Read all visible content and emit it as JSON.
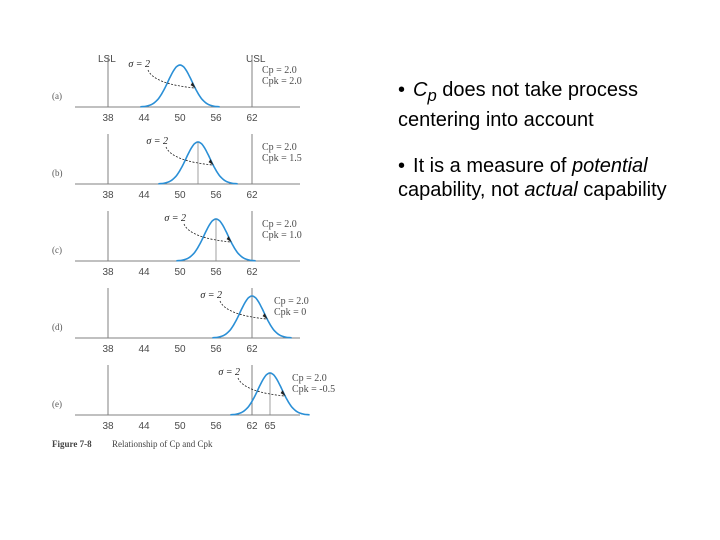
{
  "chart_data": {
    "type": "line",
    "description_labels": {
      "lsl": "LSL",
      "usl": "USL"
    },
    "spec_limits": {
      "lsl": 38,
      "usl": 62
    },
    "x_ticks": [
      "38",
      "44",
      "50",
      "56",
      "62"
    ],
    "sigma": 2,
    "sigma_label": "σ = 2",
    "panels": [
      {
        "label": "(a)",
        "mean": 50,
        "cp": "Cp = 2.0",
        "cpk": "Cpk = 2.0",
        "ticks": [
          "38",
          "44",
          "50",
          "56",
          "62"
        ]
      },
      {
        "label": "(b)",
        "mean": 53,
        "cp": "Cp = 2.0",
        "cpk": "Cpk = 1.5",
        "ticks": [
          "38",
          "44",
          "50",
          "56",
          "62"
        ]
      },
      {
        "label": "(c)",
        "mean": 56,
        "cp": "Cp = 2.0",
        "cpk": "Cpk = 1.0",
        "ticks": [
          "38",
          "44",
          "50",
          "56",
          "62"
        ]
      },
      {
        "label": "(d)",
        "mean": 62,
        "cp": "Cp = 2.0",
        "cpk": "Cpk = 0",
        "ticks": [
          "38",
          "44",
          "50",
          "56",
          "62"
        ]
      },
      {
        "label": "(e)",
        "mean": 65,
        "cp": "Cp = 2.0",
        "cpk": "Cpk = -0.5",
        "ticks": [
          "38",
          "44",
          "50",
          "56",
          "62",
          "65"
        ]
      }
    ],
    "caption_fig": "Figure 7-8",
    "caption_text": "Relationship of Cp and Cpk"
  },
  "bullets": [
    {
      "parts": [
        {
          "text": "C",
          "italic": true
        },
        {
          "text": "p",
          "italic": true,
          "sub": true
        },
        {
          "text": " does not take process centering into account",
          "italic": false
        }
      ]
    },
    {
      "parts": [
        {
          "text": "It is a measure of ",
          "italic": false
        },
        {
          "text": "potential",
          "italic": true
        },
        {
          "text": " capability, not ",
          "italic": false
        },
        {
          "text": "actual",
          "italic": true
        },
        {
          "text": " capability",
          "italic": false
        }
      ]
    }
  ],
  "bullet_symbol": "•",
  "colors": {
    "curve": "#2a8fd6",
    "axis": "#808080",
    "text": "#000000"
  }
}
